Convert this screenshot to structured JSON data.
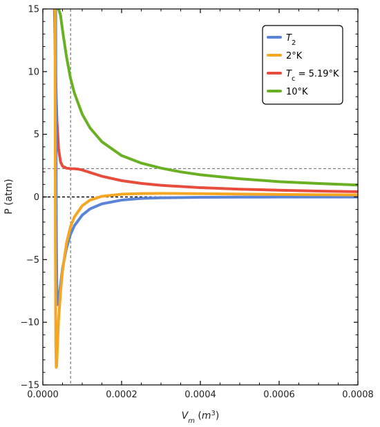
{
  "chart_data": {
    "type": "line",
    "xlabel": "V_m (m^3)",
    "ylabel": "P (atm)",
    "xlim": [
      0,
      0.0008
    ],
    "ylim": [
      -15,
      15
    ],
    "x_ticks": [
      "0.0000",
      "0.0002",
      "0.0004",
      "0.0006",
      "0.0008"
    ],
    "y_ticks": [
      "15",
      "10",
      "5",
      "0",
      "−5",
      "−10",
      "−15"
    ],
    "reference_lines": {
      "critical_volume": 7.05e-05,
      "critical_pressure": 2.26,
      "zero_pressure": 0
    },
    "legend_position": "top-right",
    "series": [
      {
        "name": "T2",
        "name_html": "T<tspan baseline-shift=\"sub\" font-size=\"10\">2</tspan>",
        "color": "#5b84d6",
        "x": [
          3.26e-05,
          3.3e-05,
          3.35e-05,
          3.4e-05,
          3.45e-05,
          3.5e-05,
          3.55e-05,
          3.6e-05,
          3.7e-05,
          3.85e-05,
          4e-05,
          4.5e-05,
          5e-05,
          6e-05,
          7e-05,
          8e-05,
          0.0001,
          0.00012,
          0.00015,
          0.0002,
          0.00025,
          0.0003,
          0.0004,
          0.0005,
          0.0006,
          0.0007,
          0.0008
        ],
        "y": [
          15,
          10,
          4,
          0,
          -3.2,
          -5.3,
          -6.8,
          -7.8,
          -8.5,
          -8.6,
          -8.3,
          -7.0,
          -5.7,
          -4.1,
          -3.0,
          -2.3,
          -1.45,
          -0.95,
          -0.55,
          -0.25,
          -0.12,
          -0.07,
          -0.03,
          -0.015,
          -0.01,
          -0.007,
          -0.005
        ]
      },
      {
        "name": "2°K",
        "color": "#f5a623",
        "x": [
          3.1e-05,
          3.15e-05,
          3.2e-05,
          3.25e-05,
          3.3e-05,
          3.4e-05,
          3.5e-05,
          3.6e-05,
          3.7e-05,
          3.8e-05,
          4e-05,
          4.5e-05,
          5e-05,
          6e-05,
          7e-05,
          8e-05,
          0.0001,
          0.00012,
          0.00015,
          0.0002,
          0.00025,
          0.0003,
          0.0004,
          0.0005,
          0.0006,
          0.0007,
          0.0008
        ],
        "y": [
          15,
          5,
          -4,
          -9,
          -12,
          -13.6,
          -13.5,
          -12.8,
          -12.0,
          -11.2,
          -9.8,
          -7.6,
          -5.9,
          -3.7,
          -2.4,
          -1.6,
          -0.7,
          -0.25,
          0.05,
          0.22,
          0.27,
          0.28,
          0.26,
          0.23,
          0.2,
          0.18,
          0.16
        ]
      },
      {
        "name": "Tc = 5.19°K",
        "name_html": "T<tspan baseline-shift=\"sub\" font-size=\"10\">c</tspan> = 5.19°K",
        "color": "#e84c3d",
        "x": [
          2.95e-05,
          3e-05,
          3.1e-05,
          3.2e-05,
          3.4e-05,
          3.6e-05,
          4e-05,
          4.5e-05,
          5e-05,
          6e-05,
          7e-05,
          8e-05,
          9e-05,
          0.0001,
          0.00012,
          0.00015,
          0.0002,
          0.00025,
          0.0003,
          0.0004,
          0.0005,
          0.0006,
          0.0007,
          0.0008
        ],
        "y": [
          15,
          14,
          12,
          10.5,
          8,
          6,
          3.8,
          2.8,
          2.45,
          2.3,
          2.26,
          2.25,
          2.22,
          2.15,
          1.95,
          1.65,
          1.3,
          1.08,
          0.93,
          0.74,
          0.62,
          0.54,
          0.47,
          0.42
        ]
      },
      {
        "name": "10°K",
        "color": "#6ab023",
        "x": [
          3.45e-05,
          4e-05,
          4.5e-05,
          5e-05,
          6e-05,
          7e-05,
          8e-05,
          0.0001,
          0.00012,
          0.00015,
          0.0002,
          0.00025,
          0.0003,
          0.00035,
          0.0004,
          0.0005,
          0.0006,
          0.0007,
          0.0008
        ],
        "y": [
          15,
          15,
          14.5,
          13.3,
          11.2,
          9.5,
          8.3,
          6.6,
          5.5,
          4.4,
          3.3,
          2.7,
          2.3,
          2.0,
          1.77,
          1.45,
          1.22,
          1.07,
          0.95
        ]
      }
    ]
  }
}
